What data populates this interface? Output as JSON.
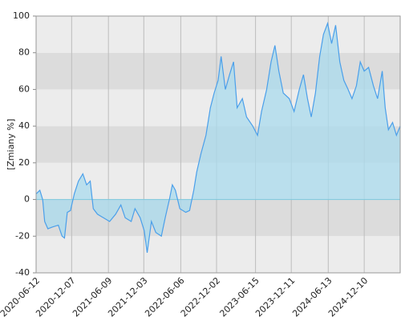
{
  "chart_data": {
    "type": "area",
    "y_label": "[Zmiany %]",
    "x": [
      "2020-06-12",
      "2020-07-01",
      "2020-07-15",
      "2020-07-25",
      "2020-08-10",
      "2020-09-01",
      "2020-10-01",
      "2020-10-20",
      "2020-11-01",
      "2020-11-15",
      "2020-12-01",
      "2020-12-20",
      "2021-01-10",
      "2021-02-01",
      "2021-02-20",
      "2021-03-10",
      "2021-03-25",
      "2021-04-15",
      "2021-05-15",
      "2021-06-15",
      "2021-07-15",
      "2021-08-10",
      "2021-09-01",
      "2021-10-01",
      "2021-10-20",
      "2021-11-15",
      "2021-12-05",
      "2021-12-20",
      "2022-01-10",
      "2022-02-01",
      "2022-03-01",
      "2022-03-20",
      "2022-04-10",
      "2022-04-25",
      "2022-05-10",
      "2022-06-01",
      "2022-07-01",
      "2022-07-20",
      "2022-08-10",
      "2022-08-25",
      "2022-09-15",
      "2022-10-10",
      "2022-11-01",
      "2022-11-20",
      "2022-12-10",
      "2022-12-25",
      "2023-01-15",
      "2023-02-05",
      "2023-02-25",
      "2023-03-15",
      "2023-04-10",
      "2023-05-01",
      "2023-06-01",
      "2023-06-25",
      "2023-07-15",
      "2023-08-10",
      "2023-09-01",
      "2023-09-20",
      "2023-10-10",
      "2023-11-01",
      "2023-12-01",
      "2023-12-25",
      "2024-01-20",
      "2024-02-10",
      "2024-03-01",
      "2024-03-20",
      "2024-04-10",
      "2024-05-01",
      "2024-05-20",
      "2024-06-10",
      "2024-06-30",
      "2024-07-20",
      "2024-08-10",
      "2024-08-30",
      "2024-09-20",
      "2024-10-10",
      "2024-11-01",
      "2024-11-20",
      "2024-12-10",
      "2025-01-01",
      "2025-01-25",
      "2025-02-15",
      "2025-03-10",
      "2025-03-25",
      "2025-04-10",
      "2025-05-01",
      "2025-05-20",
      "2025-06-08"
    ],
    "values": [
      3,
      5,
      0,
      -12,
      -16,
      -15,
      -14,
      -20,
      -21,
      -7,
      -6,
      3,
      10,
      14,
      8,
      10,
      -5,
      -8,
      -10,
      -12,
      -8,
      -3,
      -10,
      -12,
      -5,
      -10,
      -17,
      -29,
      -12,
      -18,
      -20,
      -10,
      0,
      8,
      5,
      -5,
      -7,
      -6,
      5,
      15,
      25,
      35,
      50,
      58,
      65,
      78,
      60,
      68,
      75,
      50,
      55,
      45,
      40,
      35,
      48,
      60,
      75,
      84,
      70,
      58,
      55,
      48,
      60,
      68,
      55,
      45,
      58,
      78,
      90,
      96,
      85,
      95,
      75,
      65,
      60,
      55,
      62,
      75,
      70,
      72,
      62,
      55,
      70,
      50,
      38,
      42,
      35,
      40
    ],
    "line_color": "#4a9fea",
    "fill_color": "#a9dbee",
    "band_colors": [
      "#ececec",
      "#dcdcdc"
    ],
    "xlim": [
      "2020-06-12",
      "2025-06-08"
    ],
    "xticks": [
      "2020-06-12",
      "2020-12-07",
      "2021-06-09",
      "2021-12-03",
      "2022-06-06",
      "2022-12-02",
      "2023-06-15",
      "2023-12-11",
      "2024-06-13",
      "2024-12-10"
    ],
    "ylim": [
      -40,
      100
    ],
    "yticks": [
      -40,
      -20,
      0,
      20,
      40,
      60,
      80,
      100
    ],
    "grid": true
  }
}
